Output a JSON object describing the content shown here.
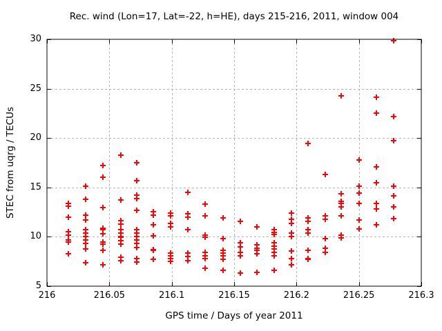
{
  "chart_data": {
    "type": "scatter",
    "title": "Rec. wind (Lon=17, Lat=-22, h=HE), days 215-216, 2011, window 004",
    "xlabel": "GPS time / Days of year 2011",
    "ylabel": "STEC from uqrg / TECUs",
    "xlim": [
      216,
      216.3
    ],
    "ylim": [
      5,
      30
    ],
    "xticks": [
      216,
      216.05,
      216.1,
      216.15,
      216.2,
      216.25,
      216.3
    ],
    "xtick_labels": [
      "216",
      "216.05",
      "216.1",
      "216.15",
      "216.2",
      "216.25",
      "216.3"
    ],
    "yticks": [
      5,
      10,
      15,
      20,
      25,
      30
    ],
    "ytick_labels": [
      "5",
      "10",
      "15",
      "20",
      "25",
      "30"
    ],
    "grid": true,
    "legend": "none",
    "marker": "plus",
    "marker_color": "#ff0000",
    "grid_color": "#b3b3b3",
    "border_color": "#000000",
    "series": [
      {
        "name": "STEC",
        "columns": [
          {
            "x": 216.017,
            "values": [
              13.4,
              13.1,
              11.95,
              10.5,
              10.2,
              9.65,
              9.5,
              8.3
            ]
          },
          {
            "x": 216.031,
            "values": [
              15.1,
              13.8,
              12.2,
              11.7,
              10.7,
              10.35,
              10.0,
              9.65,
              9.35,
              8.8,
              7.4
            ]
          },
          {
            "x": 216.045,
            "values": [
              17.2,
              16.0,
              12.95,
              10.9,
              10.75,
              10.3,
              9.5,
              9.25,
              8.6,
              7.15
            ]
          },
          {
            "x": 216.059,
            "values": [
              18.3,
              13.7,
              11.6,
              11.3,
              10.7,
              10.35,
              10.05,
              9.95,
              9.6,
              9.25,
              7.95,
              7.55
            ]
          },
          {
            "x": 216.072,
            "values": [
              17.5,
              15.7,
              14.2,
              13.9,
              12.7,
              10.75,
              10.4,
              10.05,
              9.65,
              9.3,
              8.9,
              7.8,
              7.45
            ]
          },
          {
            "x": 216.085,
            "values": [
              12.55,
              12.2,
              11.2,
              10.1,
              8.7,
              8.6,
              7.75
            ]
          },
          {
            "x": 216.099,
            "values": [
              12.4,
              12.1,
              11.35,
              11.0,
              8.35,
              8.05,
              7.8,
              7.5
            ]
          },
          {
            "x": 216.113,
            "values": [
              14.5,
              12.35,
              12.0,
              10.75,
              8.35,
              8.0,
              7.6
            ]
          },
          {
            "x": 216.127,
            "values": [
              13.3,
              12.15,
              10.2,
              9.95,
              8.4,
              8.1,
              7.8,
              6.8
            ]
          },
          {
            "x": 216.141,
            "values": [
              11.9,
              9.8,
              8.65,
              8.35,
              8.05,
              7.7,
              6.6
            ]
          },
          {
            "x": 216.155,
            "values": [
              11.55,
              9.4,
              9.0,
              8.45,
              8.05,
              6.3
            ]
          },
          {
            "x": 216.168,
            "values": [
              11.0,
              9.2,
              8.85,
              8.6,
              8.3,
              6.4
            ]
          },
          {
            "x": 216.182,
            "values": [
              10.75,
              10.45,
              10.25,
              9.4,
              9.05,
              8.8,
              8.45,
              8.05,
              6.6
            ]
          },
          {
            "x": 216.196,
            "values": [
              12.4,
              11.8,
              11.35,
              10.35,
              10.0,
              8.55,
              7.8,
              7.15
            ]
          },
          {
            "x": 216.209,
            "values": [
              19.45,
              11.9,
              11.55,
              10.75,
              10.4,
              8.65,
              7.8,
              7.7
            ]
          },
          {
            "x": 216.223,
            "values": [
              16.3,
              12.15,
              11.8,
              9.8,
              8.85,
              8.4
            ]
          },
          {
            "x": 216.236,
            "values": [
              24.3,
              14.35,
              13.6,
              13.35,
              13.0,
              12.1,
              10.15,
              9.9
            ]
          },
          {
            "x": 216.25,
            "values": [
              17.75,
              15.1,
              14.4,
              13.4,
              11.7,
              10.8
            ]
          },
          {
            "x": 216.264,
            "values": [
              24.15,
              22.5,
              17.05,
              15.45,
              13.4,
              12.8,
              11.25
            ]
          },
          {
            "x": 216.278,
            "values": [
              29.85,
              22.15,
              19.7,
              15.15,
              14.15,
              13.05,
              11.85
            ]
          }
        ]
      }
    ]
  }
}
